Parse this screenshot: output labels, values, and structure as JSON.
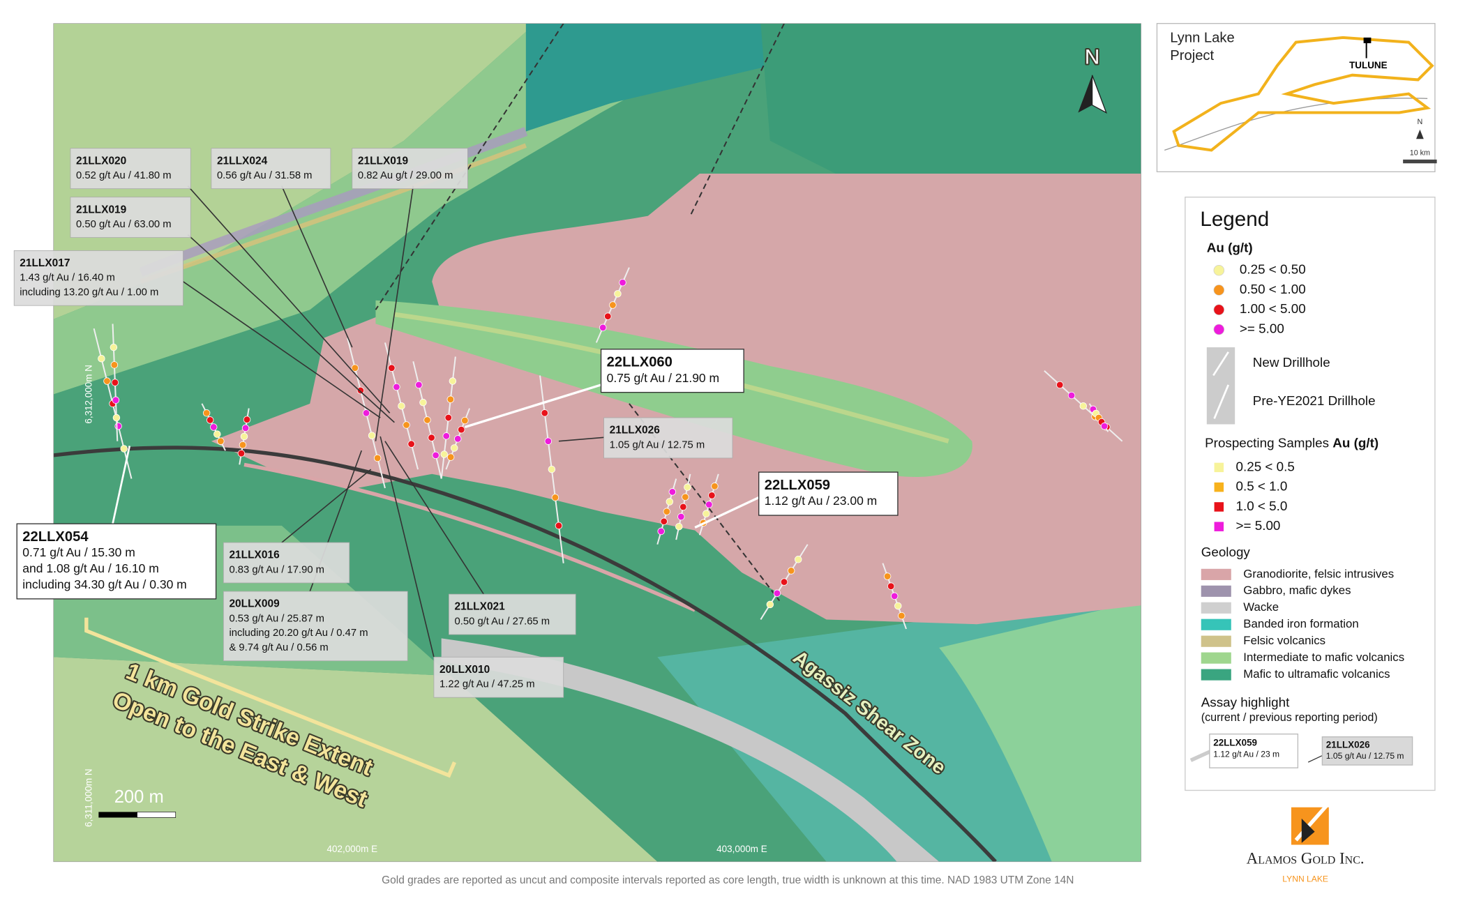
{
  "map": {
    "north": "N",
    "northing_labels": [
      "6,312,000m N",
      "6,311,000m N"
    ],
    "easting_labels": [
      "402,000m E",
      "403,000m E"
    ],
    "scale_bar": "200 m",
    "shear_zone": "Agassiz Shear Zone",
    "strike_note": [
      "1 km Gold Strike Extent",
      "Open to the East & West"
    ]
  },
  "callouts": [
    {
      "hole": "21LLX020",
      "lines": [
        "0.52 g/t Au / 41.80 m"
      ]
    },
    {
      "hole": "21LLX024",
      "lines": [
        "0.56 g/t Au / 31.58 m"
      ]
    },
    {
      "hole": "21LLX019",
      "lines": [
        "0.82 Au g/t / 29.00 m"
      ]
    },
    {
      "hole": "21LLX019",
      "lines": [
        "0.50 g/t Au / 63.00 m"
      ]
    },
    {
      "hole": "21LLX017",
      "lines": [
        "1.43 g/t Au / 16.40 m",
        "including 13.20 g/t Au / 1.00 m"
      ]
    },
    {
      "hole": "22LLX060",
      "lines": [
        "0.75 g/t Au / 21.90 m"
      ]
    },
    {
      "hole": "21LLX026",
      "lines": [
        "1.05 g/t Au / 12.75 m"
      ]
    },
    {
      "hole": "22LLX059",
      "lines": [
        "1.12 g/t Au / 23.00 m"
      ]
    },
    {
      "hole": "22LLX054",
      "lines": [
        "0.71 g/t Au / 15.30 m",
        "and 1.08 g/t Au / 16.10 m",
        "including 34.30 g/t Au / 0.30 m"
      ]
    },
    {
      "hole": "21LLX016",
      "lines": [
        "0.83 g/t Au / 17.90 m"
      ]
    },
    {
      "hole": "20LLX009",
      "lines": [
        "0.53 g/t Au / 25.87 m",
        "including 20.20 g/t Au / 0.47 m",
        "& 9.74 g/t Au / 0.56 m"
      ]
    },
    {
      "hole": "21LLX021",
      "lines": [
        "0.50 g/t Au / 27.65 m"
      ]
    },
    {
      "hole": "20LLX010",
      "lines": [
        "1.22 g/t Au / 47.25 m"
      ]
    }
  ],
  "inset": {
    "title": [
      "Lynn Lake",
      "Project"
    ],
    "site": "TULUNE",
    "north": "N",
    "scale": "10 km"
  },
  "legend": {
    "title": "Legend",
    "au_title": "Au (g/t)",
    "au_items": [
      {
        "label": "0.25 < 0.50",
        "color": "#f7f39a"
      },
      {
        "label": "0.50 < 1.00",
        "color": "#f7941d"
      },
      {
        "label": "1.00 < 5.00",
        "color": "#e8121a"
      },
      {
        "label": ">= 5.00",
        "color": "#ee1cdc"
      }
    ],
    "drillholes": [
      "New Drillhole",
      "Pre-YE2021 Drillhole"
    ],
    "prospecting_title": [
      "Prospecting Samples ",
      "Au (g/t)"
    ],
    "prospecting_items": [
      {
        "label": "0.25 < 0.5",
        "color": "#f7f39a"
      },
      {
        "label": "0.5 < 1.0",
        "color": "#f7b21d"
      },
      {
        "label": "1.0 < 5.0",
        "color": "#e8121a"
      },
      {
        "label": ">= 5.00",
        "color": "#ee1cdc"
      }
    ],
    "geology_title": "Geology",
    "geology_items": [
      {
        "label": "Granodiorite, felsic intrusives",
        "color": "#d9a5a8"
      },
      {
        "label": "Gabbro, mafic dykes",
        "color": "#9e93ad"
      },
      {
        "label": "Wacke",
        "color": "#cfcfcf"
      },
      {
        "label": "Banded iron formation",
        "color": "#36c4b8"
      },
      {
        "label": "Felsic volcanics",
        "color": "#cfc28a"
      },
      {
        "label": "Intermediate to mafic volcanics",
        "color": "#9fd68e"
      },
      {
        "label": "Mafic to ultramafic volcanics",
        "color": "#3aa580"
      }
    ],
    "assay_title": [
      "Assay highlight",
      "(current / previous reporting period)"
    ],
    "assay_examples": [
      {
        "hole": "22LLX059",
        "text": "1.12 g/t Au / 23 m"
      },
      {
        "hole": "21LLX026",
        "text": "1.05 g/t Au / 12.75 m"
      }
    ]
  },
  "logo": {
    "name": "Alamos Gold Inc.",
    "sub": "LYNN LAKE"
  },
  "footnote": "Gold grades are reported as uncut and composite intervals reported as core length, true width is unknown at this time. NAD 1983 UTM Zone 14N"
}
